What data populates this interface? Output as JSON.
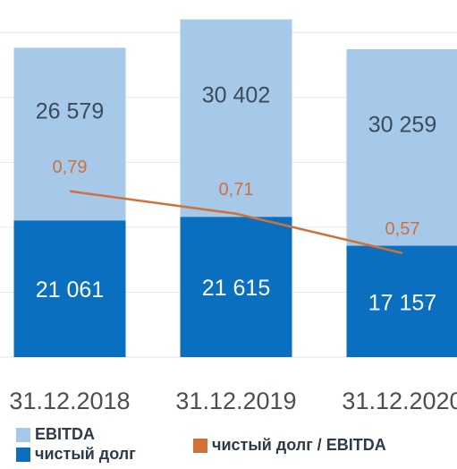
{
  "chart_data": {
    "type": "bar",
    "stacked": true,
    "categories": [
      "31.12.2018",
      "31.12.2019",
      "31.12.2020"
    ],
    "series": [
      {
        "name": "чистый долг",
        "color": "#0b6fc0",
        "values": [
          21061,
          21615,
          17157
        ],
        "value_labels": [
          "21 061",
          "21 615",
          "17 157"
        ]
      },
      {
        "name": "EBITDA",
        "color": "#a6c9ea",
        "values": [
          26579,
          30402,
          30259
        ],
        "value_labels": [
          "26 579",
          "30 402",
          "30 259"
        ]
      },
      {
        "name": "чистый долг / EBITDA",
        "type": "line",
        "axis": "y2",
        "color": "#d0713a",
        "values": [
          0.79,
          0.71,
          0.57
        ],
        "value_labels": [
          "0,79",
          "0,71",
          "0,57"
        ]
      }
    ],
    "ylim": [
      0,
      55000
    ],
    "yticks": [
      0,
      10000,
      20000,
      30000,
      40000,
      50000
    ],
    "grid": true,
    "y2lim": [
      0.2,
      1.47
    ]
  }
}
